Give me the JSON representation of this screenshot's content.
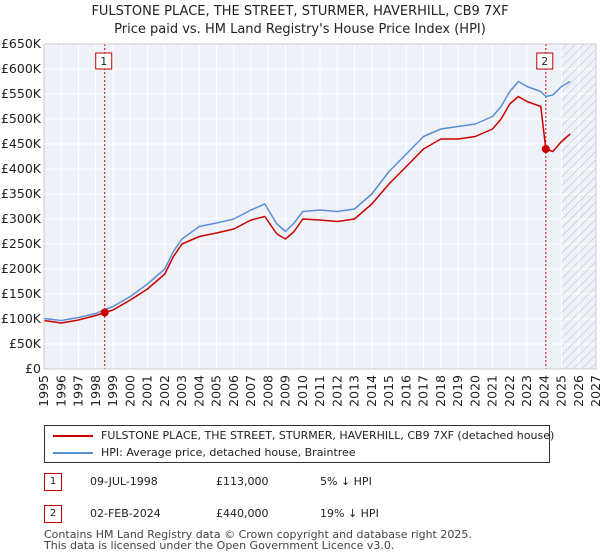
{
  "chart_data": {
    "type": "line",
    "title": "FULSTONE PLACE, THE STREET, STURMER, HAVERHILL, CB9 7XF",
    "subtitle": "Price paid vs. HM Land Registry's House Price Index (HPI)",
    "x_ticks": [
      "1995",
      "1996",
      "1997",
      "1998",
      "1999",
      "2000",
      "2001",
      "2002",
      "2003",
      "2004",
      "2005",
      "2006",
      "2007",
      "2008",
      "2009",
      "2010",
      "2011",
      "2012",
      "2013",
      "2014",
      "2015",
      "2016",
      "2017",
      "2018",
      "2019",
      "2020",
      "2021",
      "2022",
      "2023",
      "2024",
      "2025",
      "2026",
      "2027"
    ],
    "y_ticks": [
      "£0",
      "£50K",
      "£100K",
      "£150K",
      "£200K",
      "£250K",
      "£300K",
      "£350K",
      "£400K",
      "£450K",
      "£500K",
      "£550K",
      "£600K",
      "£650K"
    ],
    "xlim": [
      1995,
      2027
    ],
    "ylim": [
      0,
      650000
    ],
    "hatched_future_from": 2025.0,
    "series": [
      {
        "name": "FULSTONE PLACE, THE STREET, STURMER, HAVERHILL, CB9 7XF (detached house)",
        "color": "#cc0000",
        "points": [
          [
            1995.0,
            97000
          ],
          [
            1996.0,
            92000
          ],
          [
            1997.0,
            98000
          ],
          [
            1998.0,
            107000
          ],
          [
            1998.52,
            113000
          ],
          [
            1999.0,
            118000
          ],
          [
            2000.0,
            138000
          ],
          [
            2001.0,
            160000
          ],
          [
            2002.0,
            190000
          ],
          [
            2002.5,
            225000
          ],
          [
            2003.0,
            250000
          ],
          [
            2004.0,
            265000
          ],
          [
            2005.0,
            272000
          ],
          [
            2006.0,
            280000
          ],
          [
            2007.0,
            298000
          ],
          [
            2007.8,
            305000
          ],
          [
            2008.5,
            270000
          ],
          [
            2009.0,
            260000
          ],
          [
            2009.5,
            275000
          ],
          [
            2010.0,
            300000
          ],
          [
            2011.0,
            298000
          ],
          [
            2012.0,
            295000
          ],
          [
            2013.0,
            300000
          ],
          [
            2014.0,
            330000
          ],
          [
            2015.0,
            370000
          ],
          [
            2016.0,
            405000
          ],
          [
            2017.0,
            440000
          ],
          [
            2018.0,
            460000
          ],
          [
            2019.0,
            460000
          ],
          [
            2020.0,
            465000
          ],
          [
            2021.0,
            480000
          ],
          [
            2021.5,
            500000
          ],
          [
            2022.0,
            530000
          ],
          [
            2022.5,
            545000
          ],
          [
            2023.0,
            535000
          ],
          [
            2023.8,
            525000
          ],
          [
            2024.09,
            440000
          ],
          [
            2024.5,
            435000
          ],
          [
            2025.0,
            455000
          ],
          [
            2025.5,
            470000
          ]
        ]
      },
      {
        "name": "HPI: Average price, detached house, Braintree",
        "color": "#5b8fd4",
        "points": [
          [
            1995.0,
            101000
          ],
          [
            1996.0,
            97000
          ],
          [
            1997.0,
            103000
          ],
          [
            1998.0,
            111000
          ],
          [
            1998.52,
            119000
          ],
          [
            1999.0,
            125000
          ],
          [
            2000.0,
            145000
          ],
          [
            2001.0,
            170000
          ],
          [
            2002.0,
            200000
          ],
          [
            2002.5,
            235000
          ],
          [
            2003.0,
            260000
          ],
          [
            2004.0,
            285000
          ],
          [
            2005.0,
            292000
          ],
          [
            2006.0,
            300000
          ],
          [
            2007.0,
            318000
          ],
          [
            2007.8,
            330000
          ],
          [
            2008.5,
            290000
          ],
          [
            2009.0,
            275000
          ],
          [
            2009.5,
            292000
          ],
          [
            2010.0,
            315000
          ],
          [
            2011.0,
            318000
          ],
          [
            2012.0,
            315000
          ],
          [
            2013.0,
            320000
          ],
          [
            2014.0,
            350000
          ],
          [
            2015.0,
            395000
          ],
          [
            2016.0,
            430000
          ],
          [
            2017.0,
            465000
          ],
          [
            2018.0,
            480000
          ],
          [
            2019.0,
            485000
          ],
          [
            2020.0,
            490000
          ],
          [
            2021.0,
            505000
          ],
          [
            2021.5,
            525000
          ],
          [
            2022.0,
            555000
          ],
          [
            2022.5,
            575000
          ],
          [
            2023.0,
            565000
          ],
          [
            2023.8,
            555000
          ],
          [
            2024.09,
            545000
          ],
          [
            2024.5,
            548000
          ],
          [
            2025.0,
            565000
          ],
          [
            2025.5,
            575000
          ]
        ]
      }
    ],
    "markers": [
      {
        "label": "1",
        "x": 1998.52,
        "y": 113000
      },
      {
        "label": "2",
        "x": 2024.09,
        "y": 440000
      }
    ]
  },
  "legend": {
    "property_label": "FULSTONE PLACE, THE STREET, STURMER, HAVERHILL, CB9 7XF (detached house)",
    "hpi_label": "HPI: Average price, detached house, Braintree",
    "property_color": "#cc0000",
    "hpi_color": "#5b8fd4"
  },
  "sales": [
    {
      "num": "1",
      "date": "09-JUL-1998",
      "price": "£113,000",
      "hpi_diff": "5% ↓ HPI"
    },
    {
      "num": "2",
      "date": "02-FEB-2024",
      "price": "£440,000",
      "hpi_diff": "19% ↓ HPI"
    }
  ],
  "footer": {
    "line1": "Contains HM Land Registry data © Crown copyright and database right 2025.",
    "line2": "This data is licensed under the Open Government Licence v3.0."
  }
}
